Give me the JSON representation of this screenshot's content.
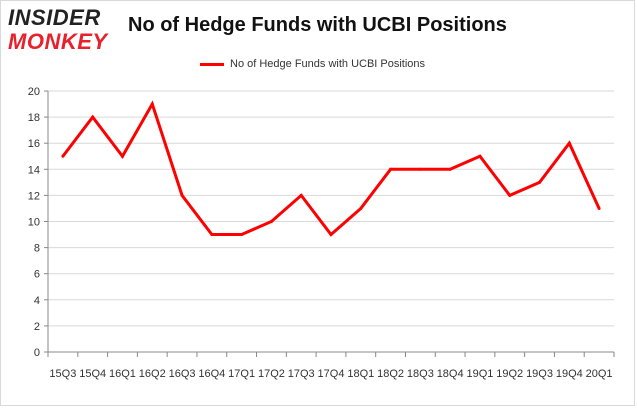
{
  "logo": {
    "line1": "INSIDER",
    "line2": "MONKEY"
  },
  "colors": {
    "series": "#ff0000",
    "grid": "#d9d9d9",
    "axis": "#888888",
    "text": "#333333",
    "brand_red": "#e8212d"
  },
  "chart_data": {
    "type": "line",
    "title": "No of Hedge Funds with UCBI Positions",
    "xlabel": "",
    "ylabel": "",
    "ylim": [
      0,
      20
    ],
    "yticks": [
      0,
      2,
      4,
      6,
      8,
      10,
      12,
      14,
      16,
      18,
      20
    ],
    "grid": "horizontal",
    "legend": "top-center",
    "categories": [
      "15Q3",
      "15Q4",
      "16Q1",
      "16Q2",
      "16Q3",
      "16Q4",
      "17Q1",
      "17Q2",
      "17Q3",
      "17Q4",
      "18Q1",
      "18Q2",
      "18Q3",
      "18Q4",
      "19Q1",
      "19Q2",
      "19Q3",
      "19Q4",
      "20Q1"
    ],
    "series": [
      {
        "name": "No of Hedge Funds with UCBI Positions",
        "values": [
          15,
          18,
          15,
          19,
          12,
          9,
          9,
          10,
          12,
          9,
          11,
          14,
          14,
          14,
          15,
          12,
          13,
          16,
          11
        ]
      }
    ]
  }
}
